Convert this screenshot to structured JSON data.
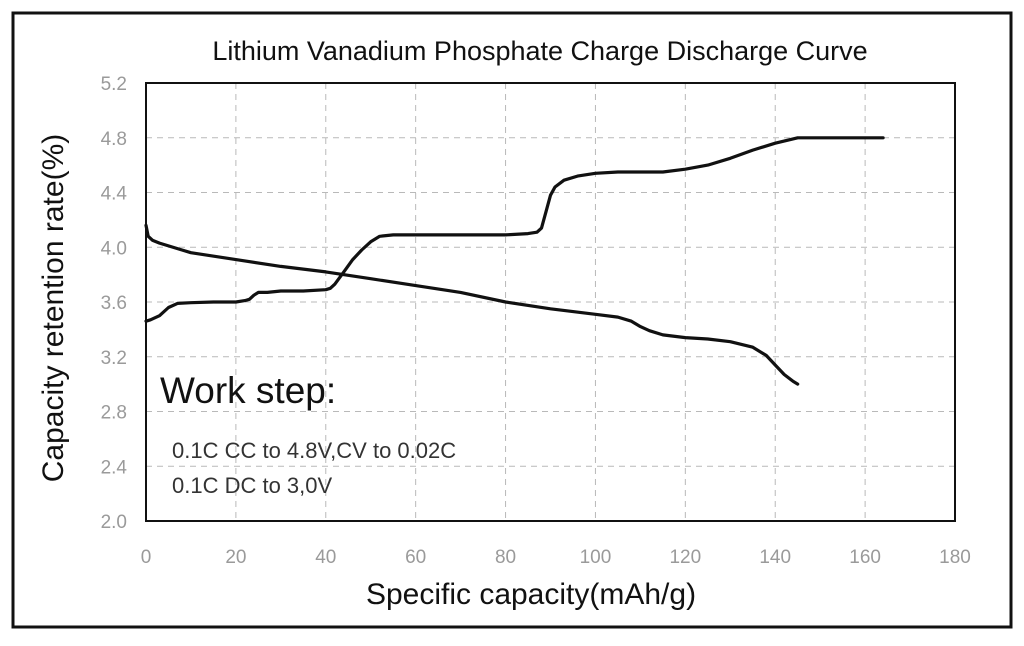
{
  "chart_data": {
    "type": "line",
    "title": "Lithium Vanadium Phosphate Charge Discharge Curve",
    "xlabel": "Specific capacity(mAh/g)",
    "ylabel": "Capacity retention rate(%)",
    "xlim": [
      0,
      180
    ],
    "ylim": [
      2.0,
      5.2
    ],
    "xticks": [
      "0",
      "20",
      "40",
      "60",
      "80",
      "100",
      "120",
      "140",
      "160",
      "180"
    ],
    "yticks": [
      "2.0",
      "2.4",
      "2.8",
      "3.2",
      "3.6",
      "4.0",
      "4.4",
      "4.8",
      "5.2"
    ],
    "grid": true,
    "line_color": "#111111",
    "series": [
      {
        "x": [
          0,
          1,
          3,
          5,
          7,
          10,
          15,
          20,
          22,
          23,
          24,
          25,
          27,
          30,
          35,
          40,
          41,
          42,
          44,
          46,
          48,
          50,
          52,
          55,
          60,
          70,
          80,
          85,
          87,
          88,
          89,
          90,
          91,
          93,
          96,
          100,
          105,
          110,
          115,
          120,
          125,
          130,
          135,
          140,
          145,
          150,
          155,
          160,
          164
        ],
        "y": [
          3.46,
          3.47,
          3.5,
          3.56,
          3.59,
          3.595,
          3.6,
          3.6,
          3.61,
          3.62,
          3.65,
          3.67,
          3.67,
          3.68,
          3.68,
          3.69,
          3.7,
          3.73,
          3.82,
          3.91,
          3.98,
          4.04,
          4.08,
          4.09,
          4.09,
          4.09,
          4.09,
          4.1,
          4.11,
          4.14,
          4.26,
          4.38,
          4.44,
          4.49,
          4.52,
          4.54,
          4.55,
          4.55,
          4.55,
          4.57,
          4.6,
          4.65,
          4.71,
          4.76,
          4.8,
          4.8,
          4.8,
          4.8,
          4.8
        ]
      },
      {
        "x": [
          0,
          0.5,
          1.5,
          3,
          5,
          8,
          10,
          20,
          30,
          40,
          50,
          60,
          70,
          80,
          90,
          100,
          105,
          108,
          110,
          112,
          115,
          120,
          125,
          130,
          135,
          138,
          140,
          142,
          144,
          145
        ],
        "y": [
          4.16,
          4.08,
          4.05,
          4.03,
          4.01,
          3.98,
          3.96,
          3.91,
          3.86,
          3.82,
          3.77,
          3.72,
          3.67,
          3.6,
          3.55,
          3.51,
          3.49,
          3.46,
          3.42,
          3.39,
          3.36,
          3.34,
          3.33,
          3.31,
          3.27,
          3.21,
          3.14,
          3.07,
          3.02,
          3.0
        ]
      }
    ],
    "annotation": {
      "heading": "Work step:",
      "lines": [
        "0.1C CC to 4.8V,CV to 0.02C",
        "0.1C DC to 3,0V"
      ]
    }
  }
}
